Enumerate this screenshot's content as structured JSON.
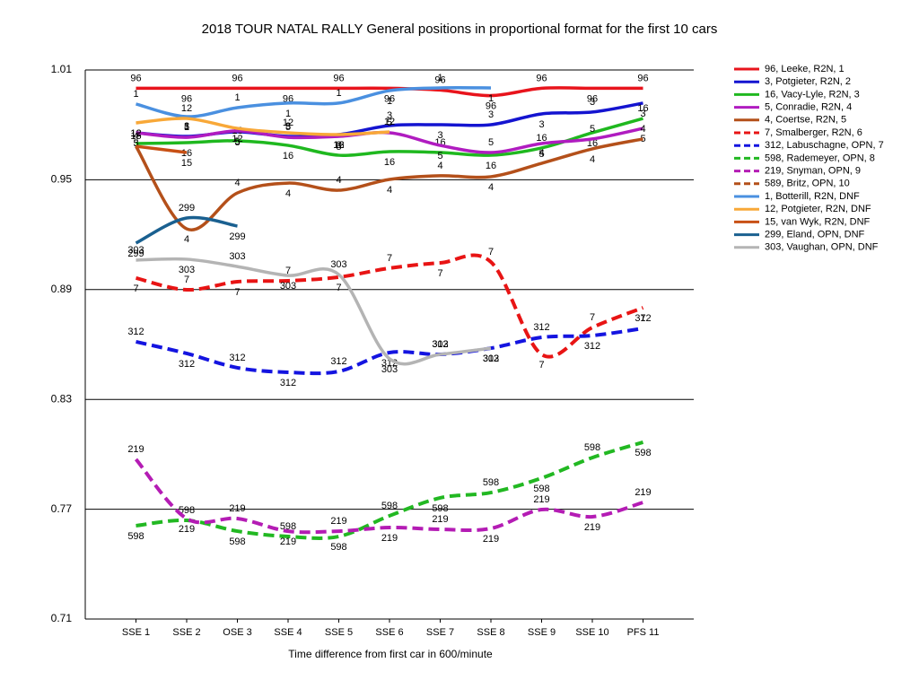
{
  "chart_data": {
    "type": "line",
    "title": "2018 TOUR NATAL RALLY  General positions in proportional format for the first 10 cars",
    "x_label": "Time difference from first car in 600/minute",
    "categories": [
      "SSE 1",
      "SSE 2",
      "OSE 3",
      "SSE 4",
      "SSE 5",
      "SSE 6",
      "SSE 7",
      "SSE 8",
      "SSE 9",
      "SSE 10",
      "PFS 11"
    ],
    "ylim": [
      0.71,
      1.01
    ],
    "yticks": [
      0.71,
      0.77,
      0.83,
      0.89,
      0.95,
      1.01
    ],
    "grid": true,
    "legend": "right",
    "series": [
      {
        "name": "96, Leeke, R2N, 1",
        "label": "96",
        "color": "#e8141c",
        "dashed": false,
        "values": [
          1.0,
          1.0,
          1.0,
          1.0,
          1.0,
          1.0,
          0.999,
          0.996,
          1.0,
          1.0,
          1.0
        ]
      },
      {
        "name": "3, Potgieter, R2N, 2",
        "label": "3",
        "color": "#1414d0",
        "dashed": false,
        "values": [
          0.9757,
          0.9737,
          0.9762,
          0.9737,
          0.9747,
          0.9796,
          0.9801,
          0.9801,
          0.986,
          0.987,
          0.9919
        ]
      },
      {
        "name": "16, Vacy-Lyle, R2N, 3",
        "label": "16",
        "color": "#1fb81f",
        "dashed": false,
        "values": [
          0.9698,
          0.9703,
          0.9713,
          0.9688,
          0.9634,
          0.9654,
          0.9649,
          0.9634,
          0.9674,
          0.9757,
          0.9835
        ]
      },
      {
        "name": "5, Conradie, R2N, 4",
        "label": "5",
        "color": "#b01cc0",
        "dashed": false,
        "values": [
          0.9757,
          0.9732,
          0.9767,
          0.9732,
          0.9737,
          0.9757,
          0.9688,
          0.9649,
          0.9698,
          0.9723,
          0.9781
        ]
      },
      {
        "name": "4, Coertse, R2N, 5",
        "label": "4",
        "color": "#b4501a",
        "dashed": false,
        "values": [
          0.9683,
          0.9232,
          0.9428,
          0.9482,
          0.9443,
          0.9502,
          0.9522,
          0.9517,
          0.959,
          0.9669,
          0.9723
        ]
      },
      {
        "name": "7, Smalberger, R2N, 6",
        "label": "7",
        "color": "#e81414",
        "dashed": true,
        "values": [
          0.8963,
          0.8899,
          0.8943,
          0.8948,
          0.8968,
          0.9017,
          0.9046,
          0.9051,
          0.8546,
          0.8693,
          0.8801
        ]
      },
      {
        "name": "312, Labuschagne, OPN, 7",
        "label": "312",
        "color": "#1414e0",
        "dashed": true,
        "values": [
          0.8615,
          0.8551,
          0.8473,
          0.8448,
          0.8453,
          0.8556,
          0.8546,
          0.858,
          0.8639,
          0.8649,
          0.8688
        ]
      },
      {
        "name": "598, Rademeyer, OPN, 8",
        "label": "598",
        "color": "#22b822",
        "dashed": true,
        "values": [
          0.761,
          0.7639,
          0.758,
          0.7551,
          0.7551,
          0.7664,
          0.7762,
          0.7791,
          0.787,
          0.7982,
          0.8066
        ]
      },
      {
        "name": "219, Snyman, OPN, 9",
        "label": "219",
        "color": "#b41cb4",
        "dashed": true,
        "values": [
          0.7973,
          0.7649,
          0.7649,
          0.758,
          0.758,
          0.76,
          0.759,
          0.7595,
          0.7698,
          0.7659,
          0.7737
        ]
      },
      {
        "name": "589, Britz, OPN, 10",
        "label": "589",
        "color": "#b4501a",
        "dashed": true,
        "values": [
          null,
          null,
          null,
          null,
          null,
          null,
          null,
          null,
          null,
          null,
          null
        ]
      },
      {
        "name": "1, Botterill, R2N, DNF",
        "label": "1",
        "color": "#4a90e0",
        "dashed": false,
        "values": [
          0.9914,
          0.9845,
          0.9894,
          0.9919,
          0.9919,
          0.9987,
          1.0002,
          1.0002,
          null,
          null,
          null
        ]
      },
      {
        "name": "12, Potgieter, R2N, DNF",
        "label": "12",
        "color": "#f8a838",
        "dashed": false,
        "values": [
          0.9811,
          0.9835,
          0.9781,
          0.9757,
          0.9747,
          0.9762,
          null,
          null,
          null,
          null,
          null
        ]
      },
      {
        "name": "15, van Wyk, R2N, DNF",
        "label": "15",
        "color": "#c85014",
        "dashed": false,
        "values": [
          0.9683,
          0.9649,
          null,
          null,
          null,
          null,
          null,
          null,
          null,
          null,
          null
        ]
      },
      {
        "name": "299, Eland, OPN, DNF",
        "label": "299",
        "color": "#1a6090",
        "dashed": false,
        "values": [
          0.9154,
          0.9291,
          0.9247,
          null,
          null,
          null,
          null,
          null,
          null,
          null,
          null
        ]
      },
      {
        "name": "303, Vaughan, OPN, DNF",
        "label": "303",
        "color": "#b4b4b4",
        "dashed": false,
        "values": [
          0.9061,
          0.9066,
          0.9026,
          0.8977,
          0.8982,
          0.8522,
          0.8546,
          0.858,
          null,
          null,
          null
        ]
      }
    ]
  }
}
